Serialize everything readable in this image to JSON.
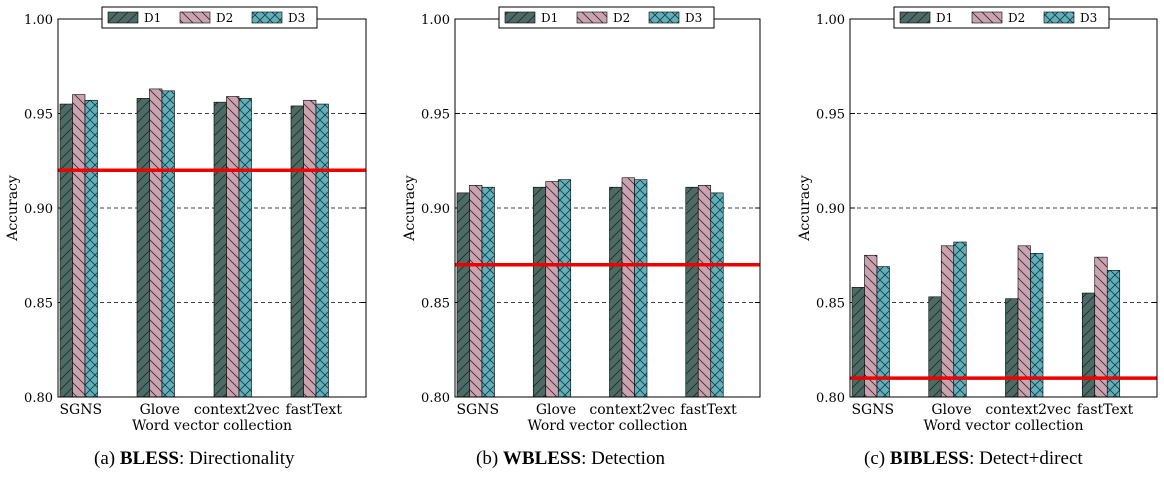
{
  "colors": {
    "D1": "#4d6b64",
    "D2": "#c9a3b0",
    "D3": "#5fb0bb",
    "baseline": "#ee0000"
  },
  "chart_data": [
    {
      "type": "bar",
      "categories": [
        "SGNS",
        "Glove",
        "context2vec",
        "fastText"
      ],
      "series": [
        {
          "name": "D1",
          "values": [
            0.955,
            0.958,
            0.956,
            0.954
          ]
        },
        {
          "name": "D2",
          "values": [
            0.96,
            0.963,
            0.959,
            0.957
          ]
        },
        {
          "name": "D3",
          "values": [
            0.957,
            0.962,
            0.958,
            0.955
          ]
        }
      ],
      "baseline": 0.92,
      "ylim": [
        0.8,
        1.0
      ],
      "yticks": [
        "0.80",
        "0.85",
        "0.90",
        "0.95",
        "1.00"
      ],
      "xlabel": "Word vector collection",
      "ylabel": "Accuracy",
      "grid": "horizontal dashed",
      "legend": "top-center",
      "caption": {
        "label": "(a)",
        "name": "BLESS",
        "rest": ": Directionality"
      }
    },
    {
      "type": "bar",
      "categories": [
        "SGNS",
        "Glove",
        "context2vec",
        "fastText"
      ],
      "series": [
        {
          "name": "D1",
          "values": [
            0.908,
            0.911,
            0.911,
            0.911
          ]
        },
        {
          "name": "D2",
          "values": [
            0.912,
            0.914,
            0.916,
            0.912
          ]
        },
        {
          "name": "D3",
          "values": [
            0.911,
            0.915,
            0.915,
            0.908
          ]
        }
      ],
      "baseline": 0.87,
      "ylim": [
        0.8,
        1.0
      ],
      "yticks": [
        "0.80",
        "0.85",
        "0.90",
        "0.95",
        "1.00"
      ],
      "xlabel": "Word vector collection",
      "ylabel": "Accuracy",
      "grid": "horizontal dashed",
      "legend": "top-center",
      "caption": {
        "label": "(b)",
        "name": "WBLESS",
        "rest": ": Detection"
      }
    },
    {
      "type": "bar",
      "categories": [
        "SGNS",
        "Glove",
        "context2vec",
        "fastText"
      ],
      "series": [
        {
          "name": "D1",
          "values": [
            0.858,
            0.853,
            0.852,
            0.855
          ]
        },
        {
          "name": "D2",
          "values": [
            0.875,
            0.88,
            0.88,
            0.874
          ]
        },
        {
          "name": "D3",
          "values": [
            0.869,
            0.882,
            0.876,
            0.867
          ]
        }
      ],
      "baseline": 0.81,
      "ylim": [
        0.8,
        1.0
      ],
      "yticks": [
        "0.80",
        "0.85",
        "0.90",
        "0.95",
        "1.00"
      ],
      "xlabel": "Word vector collection",
      "ylabel": "Accuracy",
      "grid": "horizontal dashed",
      "legend": "top-center",
      "caption": {
        "label": "(c)",
        "name": "BIBLESS",
        "rest": ": Detect+direct"
      }
    }
  ]
}
